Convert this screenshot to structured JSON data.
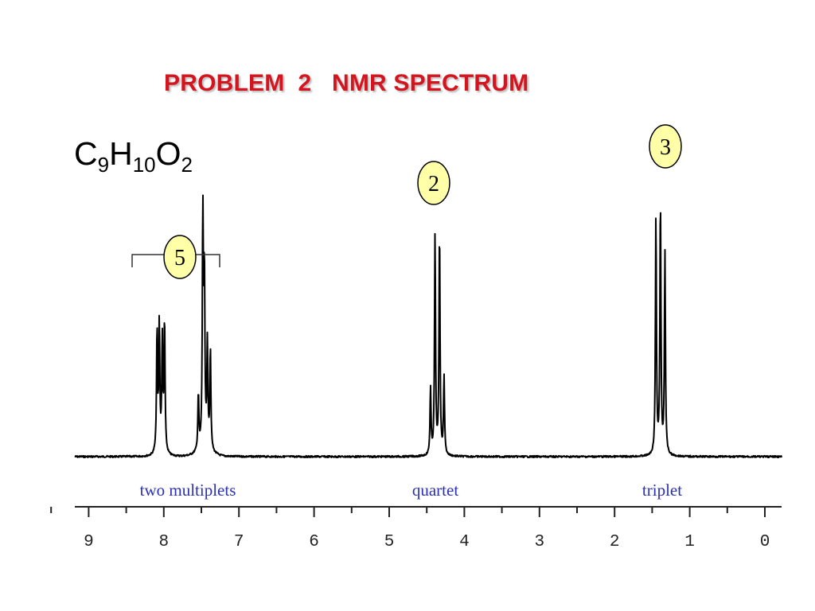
{
  "title": "PROBLEM  2   NMR SPECTRUM",
  "formula": {
    "C": "C",
    "C_sub": "9",
    "H": "H",
    "H_sub": "10",
    "O": "O",
    "O_sub": "2"
  },
  "colors": {
    "title": "#d4141e",
    "multiplicity_text": "#2a2fb4",
    "integration_fill": "#ffffa8",
    "trace": "#000000"
  },
  "chart_data": {
    "type": "line",
    "title": "",
    "xlabel": "",
    "ylabel": "",
    "x_reversed": true,
    "xlim": [
      9.5,
      -0.2
    ],
    "x_ticks": [
      9,
      8,
      7,
      6,
      5,
      4,
      3,
      2,
      1,
      0
    ],
    "x_tick_labels": [
      "9",
      "8",
      "7",
      "6",
      "5",
      "4",
      "3",
      "2",
      "1",
      "0"
    ],
    "grid": false,
    "peaks_ppm": [
      {
        "ppm": 8.09,
        "height": 0.47
      },
      {
        "ppm": 8.06,
        "height": 0.49
      },
      {
        "ppm": 8.02,
        "height": 0.43
      },
      {
        "ppm": 7.99,
        "height": 0.51
      },
      {
        "ppm": 7.54,
        "height": 0.22
      },
      {
        "ppm": 7.48,
        "height": 0.97
      },
      {
        "ppm": 7.46,
        "height": 0.66
      },
      {
        "ppm": 7.42,
        "height": 0.41
      },
      {
        "ppm": 7.38,
        "height": 0.4
      },
      {
        "ppm": 4.45,
        "height": 0.26
      },
      {
        "ppm": 4.39,
        "height": 0.86
      },
      {
        "ppm": 4.33,
        "height": 0.88
      },
      {
        "ppm": 4.27,
        "height": 0.31
      },
      {
        "ppm": 1.45,
        "height": 0.93
      },
      {
        "ppm": 1.39,
        "height": 1.0
      },
      {
        "ppm": 1.33,
        "height": 0.79
      }
    ],
    "multiplets": [
      {
        "label": "two multiplets",
        "center_ppm": 8.0,
        "integration": "5",
        "bracket_ppm": [
          8.5,
          7.25
        ]
      },
      {
        "label": "quartet",
        "center_ppm": 4.36,
        "integration": "2"
      },
      {
        "label": "triplet",
        "center_ppm": 1.39,
        "integration": "3"
      }
    ]
  }
}
